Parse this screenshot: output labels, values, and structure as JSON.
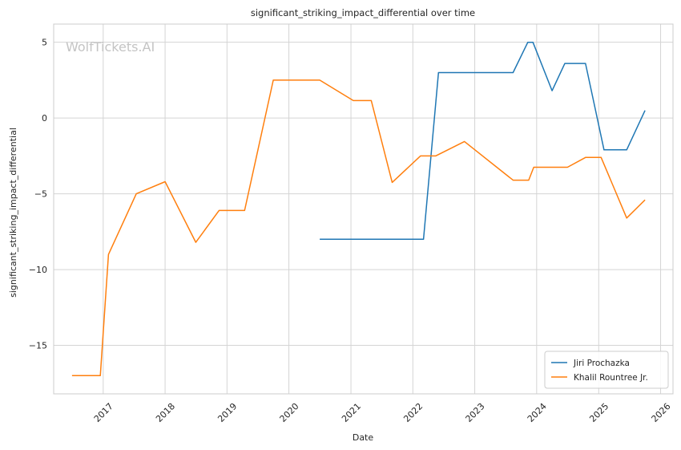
{
  "chart_data": {
    "type": "line",
    "title": "significant_striking_impact_differential over time",
    "xlabel": "Date",
    "ylabel": "significant_striking_impact_differential",
    "watermark": "WolfTickets.AI",
    "xlim": [
      "2016-03-15",
      "2026-03-15"
    ],
    "ylim": [
      -18.2,
      6.2
    ],
    "x_ticks": [
      "2017",
      "2018",
      "2019",
      "2020",
      "2021",
      "2022",
      "2023",
      "2024",
      "2025",
      "2026"
    ],
    "y_ticks": [
      5,
      0,
      -5,
      -10,
      -15
    ],
    "y_tick_labels": [
      "5",
      "0",
      "−5",
      "−10",
      "−15"
    ],
    "grid": true,
    "legend_position": "bottom-right",
    "series": [
      {
        "name": "Jiri Prochazka",
        "color": "#1f77b4",
        "points": [
          [
            "2020-07-01",
            -8.0
          ],
          [
            "2022-03-05",
            -8.0
          ],
          [
            "2022-06-01",
            3.0
          ],
          [
            "2023-08-15",
            3.0
          ],
          [
            "2023-11-10",
            5.0
          ],
          [
            "2023-12-10",
            5.0
          ],
          [
            "2024-04-01",
            1.8
          ],
          [
            "2024-06-15",
            3.6
          ],
          [
            "2024-10-15",
            3.6
          ],
          [
            "2025-02-01",
            -2.1
          ],
          [
            "2025-06-15",
            -2.1
          ],
          [
            "2025-10-01",
            0.5
          ]
        ]
      },
      {
        "name": "Khalil Rountree Jr.",
        "color": "#ff7f0e",
        "points": [
          [
            "2016-07-01",
            -17.0
          ],
          [
            "2016-12-15",
            -17.0
          ],
          [
            "2017-02-01",
            -9.0
          ],
          [
            "2017-07-15",
            -5.0
          ],
          [
            "2018-01-01",
            -4.2
          ],
          [
            "2018-07-01",
            -8.2
          ],
          [
            "2018-11-15",
            -6.1
          ],
          [
            "2019-04-15",
            -6.1
          ],
          [
            "2019-10-01",
            2.5
          ],
          [
            "2020-07-01",
            2.5
          ],
          [
            "2021-01-15",
            1.15
          ],
          [
            "2021-05-01",
            1.15
          ],
          [
            "2021-09-01",
            -4.25
          ],
          [
            "2022-02-15",
            -2.5
          ],
          [
            "2022-05-15",
            -2.5
          ],
          [
            "2022-11-01",
            -1.55
          ],
          [
            "2023-08-15",
            -4.1
          ],
          [
            "2023-11-15",
            -4.1
          ],
          [
            "2023-12-15",
            -3.25
          ],
          [
            "2024-07-01",
            -3.25
          ],
          [
            "2024-10-15",
            -2.6
          ],
          [
            "2025-01-15",
            -2.6
          ],
          [
            "2025-06-15",
            -6.6
          ],
          [
            "2025-10-01",
            -5.4
          ]
        ]
      }
    ]
  }
}
